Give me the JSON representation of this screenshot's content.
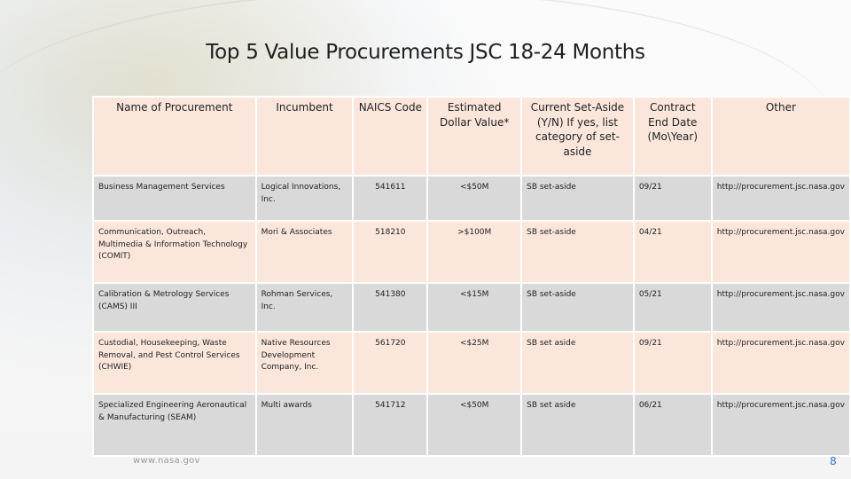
{
  "slide": {
    "title": "Top 5 Value Procurements JSC 18-24 Months",
    "footer_url": "www.nasa.gov",
    "page_number": "8"
  },
  "table": {
    "columns": [
      "Name of Procurement",
      "Incumbent",
      "NAICS Code",
      "Estimated Dollar Value*",
      "Current Set-Aside (Y/N) If yes, list category of set-aside",
      "Contract End Date (Mo\\Year)",
      "Other"
    ],
    "rows": [
      {
        "name": "Business Management Services",
        "incumbent": "Logical Innovations, Inc.",
        "naics": "541611",
        "value": "<$50M",
        "set_aside": "SB set-aside",
        "end_date": "09/21",
        "other": "http://procurement.jsc.nasa.gov"
      },
      {
        "name": "Communication, Outreach, Multimedia & Information Technology (COMIT)",
        "incumbent": "Mori & Associates",
        "naics": "518210",
        "value": ">$100M",
        "set_aside": "SB set-aside",
        "end_date": "04/21",
        "other": "http://procurement.jsc.nasa.gov"
      },
      {
        "name": "Calibration & Metrology Services (CAMS) III",
        "incumbent": "Rohman Services, Inc.",
        "naics": "541380",
        "value": "<$15M",
        "set_aside": "SB set-aside",
        "end_date": "05/21",
        "other": "http://procurement.jsc.nasa.gov"
      },
      {
        "name": "Custodial, Housekeeping, Waste Removal, and Pest Control Services (CHWIE)",
        "incumbent": "Native Resources Development Company, Inc.",
        "naics": "561720",
        "value": "<$25M",
        "set_aside": "SB set aside",
        "end_date": "09/21",
        "other": "http://procurement.jsc.nasa.gov"
      },
      {
        "name": "Specialized Engineering Aeronautical & Manufacturing (SEAM)",
        "incumbent": "Multi awards",
        "naics": "541712",
        "value": "<$50M",
        "set_aside": "SB set aside",
        "end_date": "06/21",
        "other": "http://procurement.jsc.nasa.gov"
      }
    ]
  }
}
